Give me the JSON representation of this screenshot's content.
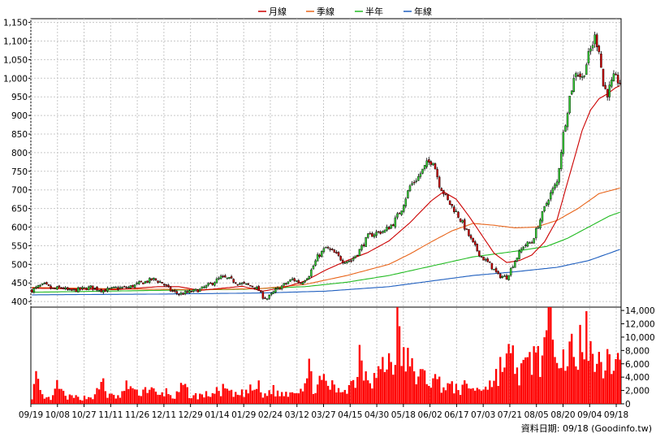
{
  "chart_data": [
    {
      "type": "candlestick",
      "legend": [
        {
          "name": "月線",
          "color": "#cc0000"
        },
        {
          "name": "季線",
          "color": "#e8651b"
        },
        {
          "name": "半年",
          "color": "#22bb22"
        },
        {
          "name": "年線",
          "color": "#1f5fbf"
        }
      ],
      "legend_position": "top-center",
      "y_ticks": [
        400,
        450,
        500,
        550,
        600,
        650,
        700,
        750,
        800,
        850,
        900,
        950,
        1000,
        1050,
        1100,
        1150
      ],
      "y_tick_labels": [
        "400",
        "450",
        "500",
        "550",
        "600",
        "650",
        "700",
        "750",
        "800",
        "850",
        "900",
        "950",
        "1,000",
        "1,050",
        "1,100",
        "1,150"
      ],
      "ylim": [
        385,
        1160
      ],
      "grid": true,
      "up_color": "#33cc33",
      "down_color": "#cc0000",
      "price_anchors": [
        [
          0,
          430
        ],
        [
          3,
          440
        ],
        [
          6,
          445
        ],
        [
          10,
          433
        ],
        [
          14,
          438
        ],
        [
          18,
          428
        ],
        [
          22,
          432
        ],
        [
          28,
          438
        ],
        [
          34,
          430
        ],
        [
          40,
          436
        ],
        [
          46,
          438
        ],
        [
          52,
          450
        ],
        [
          58,
          460
        ],
        [
          62,
          450
        ],
        [
          66,
          430
        ],
        [
          70,
          420
        ],
        [
          74,
          424
        ],
        [
          80,
          432
        ],
        [
          86,
          450
        ],
        [
          90,
          465
        ],
        [
          94,
          460
        ],
        [
          98,
          450
        ],
        [
          102,
          445
        ],
        [
          106,
          440
        ],
        [
          108,
          430
        ],
        [
          110,
          413
        ],
        [
          112,
          408
        ],
        [
          116,
          430
        ],
        [
          120,
          445
        ],
        [
          124,
          460
        ],
        [
          128,
          450
        ],
        [
          132,
          472
        ],
        [
          136,
          520
        ],
        [
          140,
          545
        ],
        [
          144,
          530
        ],
        [
          148,
          510
        ],
        [
          152,
          510
        ],
        [
          156,
          538
        ],
        [
          160,
          575
        ],
        [
          164,
          585
        ],
        [
          168,
          590
        ],
        [
          172,
          610
        ],
        [
          176,
          650
        ],
        [
          180,
          710
        ],
        [
          184,
          735
        ],
        [
          188,
          770
        ],
        [
          191,
          780
        ],
        [
          194,
          715
        ],
        [
          198,
          670
        ],
        [
          202,
          640
        ],
        [
          206,
          600
        ],
        [
          210,
          555
        ],
        [
          214,
          520
        ],
        [
          218,
          500
        ],
        [
          222,
          470
        ],
        [
          226,
          465
        ],
        [
          230,
          510
        ],
        [
          234,
          550
        ],
        [
          238,
          560
        ],
        [
          242,
          620
        ],
        [
          246,
          680
        ],
        [
          250,
          720
        ],
        [
          253,
          850
        ],
        [
          256,
          950
        ],
        [
          259,
          1020
        ],
        [
          262,
          1000
        ],
        [
          265,
          1060
        ],
        [
          268,
          1110
        ],
        [
          270,
          1080
        ],
        [
          272,
          980
        ],
        [
          274,
          960
        ],
        [
          277,
          1000
        ],
        [
          280,
          990
        ]
      ],
      "ma_monthly": [
        [
          0,
          436
        ],
        [
          20,
          434
        ],
        [
          40,
          432
        ],
        [
          60,
          440
        ],
        [
          70,
          440
        ],
        [
          80,
          430
        ],
        [
          100,
          441
        ],
        [
          110,
          428
        ],
        [
          120,
          438
        ],
        [
          130,
          455
        ],
        [
          140,
          485
        ],
        [
          150,
          510
        ],
        [
          160,
          532
        ],
        [
          170,
          563
        ],
        [
          180,
          612
        ],
        [
          190,
          670
        ],
        [
          196,
          695
        ],
        [
          202,
          675
        ],
        [
          208,
          630
        ],
        [
          214,
          580
        ],
        [
          220,
          530
        ],
        [
          226,
          505
        ],
        [
          232,
          510
        ],
        [
          238,
          525
        ],
        [
          244,
          560
        ],
        [
          250,
          620
        ],
        [
          254,
          700
        ],
        [
          258,
          780
        ],
        [
          262,
          860
        ],
        [
          266,
          915
        ],
        [
          270,
          945
        ],
        [
          274,
          958
        ],
        [
          278,
          975
        ],
        [
          280,
          980
        ]
      ],
      "ma_quarterly": [
        [
          0,
          438
        ],
        [
          40,
          434
        ],
        [
          80,
          432
        ],
        [
          110,
          435
        ],
        [
          130,
          446
        ],
        [
          150,
          470
        ],
        [
          170,
          500
        ],
        [
          180,
          528
        ],
        [
          190,
          560
        ],
        [
          200,
          590
        ],
        [
          210,
          610
        ],
        [
          220,
          605
        ],
        [
          230,
          598
        ],
        [
          240,
          600
        ],
        [
          250,
          618
        ],
        [
          260,
          650
        ],
        [
          270,
          690
        ],
        [
          280,
          705
        ]
      ],
      "ma_halfyear": [
        [
          0,
          425
        ],
        [
          60,
          430
        ],
        [
          100,
          433
        ],
        [
          130,
          440
        ],
        [
          150,
          452
        ],
        [
          170,
          470
        ],
        [
          190,
          495
        ],
        [
          210,
          520
        ],
        [
          230,
          535
        ],
        [
          245,
          548
        ],
        [
          255,
          570
        ],
        [
          265,
          600
        ],
        [
          275,
          630
        ],
        [
          280,
          640
        ]
      ],
      "ma_yearly": [
        [
          0,
          418
        ],
        [
          60,
          420
        ],
        [
          110,
          423
        ],
        [
          140,
          428
        ],
        [
          170,
          440
        ],
        [
          190,
          455
        ],
        [
          210,
          470
        ],
        [
          230,
          480
        ],
        [
          250,
          492
        ],
        [
          265,
          510
        ],
        [
          280,
          540
        ]
      ],
      "x_ticks": [
        {
          "pos": 0,
          "label": "09/19"
        },
        {
          "pos": 11,
          "label": "10/08"
        },
        {
          "pos": 22,
          "label": "10/27"
        },
        {
          "pos": 33,
          "label": "11/11"
        },
        {
          "pos": 44,
          "label": "11/26"
        },
        {
          "pos": 55,
          "label": "12/11"
        },
        {
          "pos": 66,
          "label": "12/29"
        },
        {
          "pos": 77,
          "label": "01/14"
        },
        {
          "pos": 88,
          "label": "01/29"
        },
        {
          "pos": 99,
          "label": "02/24"
        },
        {
          "pos": 110,
          "label": "03/12"
        },
        {
          "pos": 121,
          "label": "03/27"
        },
        {
          "pos": 132,
          "label": "04/15"
        },
        {
          "pos": 143,
          "label": "04/30"
        },
        {
          "pos": 154,
          "label": "05/18"
        },
        {
          "pos": 165,
          "label": "06/02"
        },
        {
          "pos": 176,
          "label": "06/17"
        },
        {
          "pos": 187,
          "label": "07/03"
        },
        {
          "pos": 198,
          "label": "07/21"
        },
        {
          "pos": 209,
          "label": "08/05"
        },
        {
          "pos": 220,
          "label": "08/20"
        },
        {
          "pos": 231,
          "label": "09/04"
        },
        {
          "pos": 242,
          "label": "09/18"
        }
      ]
    },
    {
      "type": "bar",
      "series_name": "volume",
      "color": "#ff0000",
      "y_ticks": [
        0,
        2000,
        4000,
        6000,
        8000,
        10000,
        12000,
        14000
      ],
      "y_tick_labels": [
        "0",
        "2,000",
        "4,000",
        "6,000",
        "8,000",
        "10,000",
        "12,000",
        "14,000"
      ],
      "ylim": [
        0,
        14500
      ],
      "volume_anchors": [
        [
          0,
          1200
        ],
        [
          2,
          3800
        ],
        [
          4,
          1500
        ],
        [
          6,
          700
        ],
        [
          10,
          900
        ],
        [
          12,
          2800
        ],
        [
          16,
          1000
        ],
        [
          24,
          900
        ],
        [
          30,
          1100
        ],
        [
          34,
          3600
        ],
        [
          36,
          1200
        ],
        [
          42,
          1000
        ],
        [
          46,
          3000
        ],
        [
          50,
          1500
        ],
        [
          56,
          2500
        ],
        [
          60,
          1100
        ],
        [
          64,
          1800
        ],
        [
          68,
          900
        ],
        [
          72,
          2600
        ],
        [
          76,
          1100
        ],
        [
          82,
          1300
        ],
        [
          86,
          1500
        ],
        [
          92,
          2200
        ],
        [
          96,
          1200
        ],
        [
          100,
          1500
        ],
        [
          104,
          2000
        ],
        [
          108,
          2500
        ],
        [
          110,
          1000
        ],
        [
          114,
          2200
        ],
        [
          118,
          1400
        ],
        [
          122,
          1800
        ],
        [
          126,
          2200
        ],
        [
          130,
          3000
        ],
        [
          132,
          4800
        ],
        [
          134,
          2600
        ],
        [
          138,
          3200
        ],
        [
          142,
          2800
        ],
        [
          146,
          1800
        ],
        [
          150,
          2600
        ],
        [
          154,
          3500
        ],
        [
          156,
          7800
        ],
        [
          158,
          5600
        ],
        [
          162,
          3800
        ],
        [
          166,
          5000
        ],
        [
          170,
          6400
        ],
        [
          172,
          6000
        ],
        [
          174,
          12000
        ],
        [
          176,
          7000
        ],
        [
          178,
          6800
        ],
        [
          180,
          5400
        ],
        [
          184,
          4200
        ],
        [
          188,
          3800
        ],
        [
          192,
          3500
        ],
        [
          196,
          2800
        ],
        [
          200,
          2400
        ],
        [
          204,
          2200
        ],
        [
          208,
          2700
        ],
        [
          212,
          2000
        ],
        [
          216,
          2800
        ],
        [
          220,
          3400
        ],
        [
          224,
          6000
        ],
        [
          228,
          7000
        ],
        [
          232,
          4500
        ],
        [
          236,
          5500
        ],
        [
          240,
          8000
        ],
        [
          242,
          6500
        ],
        [
          245,
          9000
        ],
        [
          247,
          14000
        ],
        [
          249,
          12500
        ],
        [
          251,
          9500
        ],
        [
          253,
          8500
        ],
        [
          255,
          6000
        ],
        [
          257,
          8000
        ],
        [
          259,
          4200
        ],
        [
          261,
          9500
        ],
        [
          263,
          11000
        ],
        [
          265,
          9000
        ],
        [
          267,
          6000
        ],
        [
          269,
          10000
        ],
        [
          271,
          7500
        ],
        [
          273,
          5000
        ],
        [
          276,
          7000
        ],
        [
          280,
          6500
        ]
      ],
      "footer_note": "資料日期: 09/18 (Goodinfo.tw)"
    }
  ]
}
